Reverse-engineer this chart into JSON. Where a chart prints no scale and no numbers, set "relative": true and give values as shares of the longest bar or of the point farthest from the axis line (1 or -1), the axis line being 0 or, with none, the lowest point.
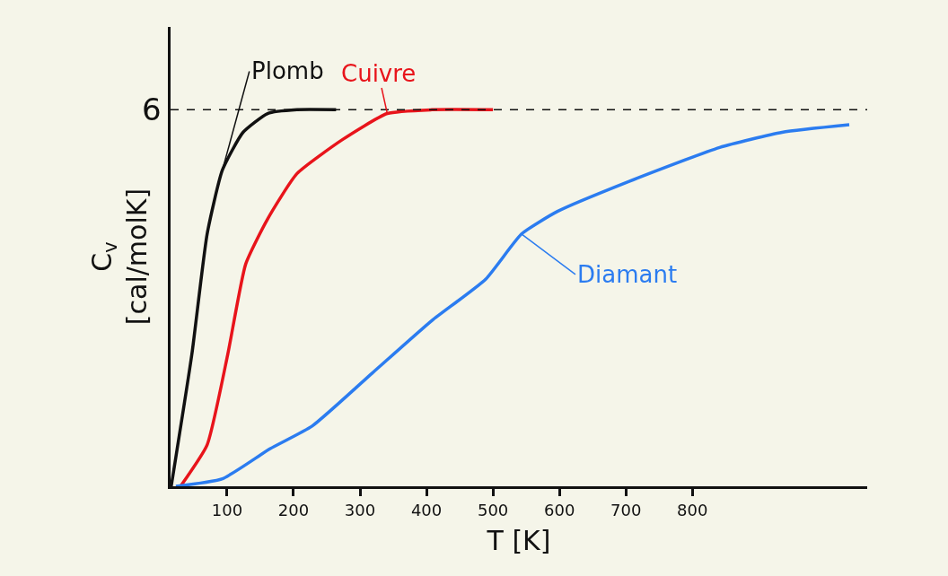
{
  "chart_data": {
    "type": "line",
    "relative": true,
    "xlabel": "T [K]",
    "ylabel": "C$_{v}$ [cal/molK]",
    "xlim": [
      15,
      1063
    ],
    "xticks": [
      100,
      200,
      300,
      400,
      500,
      600,
      700,
      800
    ],
    "grid": false,
    "legend": false,
    "marker": "none",
    "line_style": "solid",
    "series": [
      {
        "name": "Plomb",
        "color": "#111111",
        "x": [
          16,
          47,
          70,
          93,
          124,
          161,
          205,
          264
        ],
        "values": [
          0,
          0.35,
          0.67,
          0.84,
          0.94,
          0.99,
          1.0,
          1.0
        ]
      },
      {
        "name": "Cuivre",
        "color": "#e8141b",
        "x": [
          30,
          70,
          101,
          128,
          161,
          205,
          273,
          341,
          408,
          500
        ],
        "values": [
          0,
          0.11,
          0.35,
          0.59,
          0.71,
          0.83,
          0.92,
          0.99,
          1.0,
          1.0
        ]
      },
      {
        "name": "Diamant",
        "color": "#2b7cf0",
        "x": [
          23,
          93,
          165,
          228,
          318,
          408,
          489,
          543,
          597,
          705,
          841,
          935,
          1036
        ],
        "values": [
          0,
          0.02,
          0.1,
          0.16,
          0.3,
          0.44,
          0.55,
          0.67,
          0.73,
          0.81,
          0.9,
          0.94,
          0.96
        ]
      }
    ],
    "ref_lines": [
      {
        "axis": "y",
        "value": 1,
        "color": "#111111",
        "line_style": "dashed"
      }
    ],
    "annotations": [
      "6"
    ]
  }
}
